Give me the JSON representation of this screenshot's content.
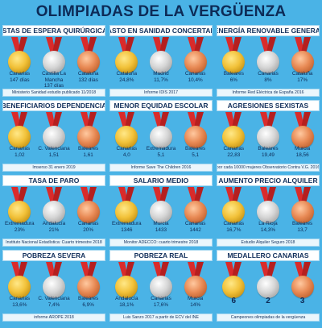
{
  "title": "OLIMPIADAS DE LA VERGÜENZA",
  "colors": {
    "background": "#4ab3e6",
    "ribbon": "#d92b2b",
    "gold": "#f2c23a",
    "silver": "#c9c9c9",
    "bronze": "#e07a45",
    "text": "#0d2b57"
  },
  "panels": [
    {
      "title": "LISTAS DE ESPERA QUIRÚRGICAS",
      "source": "Ministerio Sanidad estudio publicado 11/2018",
      "medals": [
        {
          "type": "gold",
          "line1": "Canarias",
          "line2": "147 días"
        },
        {
          "type": "silver",
          "line1": "Castilla La Mancha",
          "line2": "137 días"
        },
        {
          "type": "bronze",
          "line1": "Cataluña",
          "line2": "132 días"
        }
      ]
    },
    {
      "title": "GASTO EN SANIDAD CONCERTADA",
      "source": "Informe IDIS 2017",
      "medals": [
        {
          "type": "gold",
          "line1": "Cataluña",
          "line2": "24,8%"
        },
        {
          "type": "silver",
          "line1": "Madrid",
          "line2": "11,7%"
        },
        {
          "type": "bronze",
          "line1": "Canarias",
          "line2": "10,4%"
        }
      ]
    },
    {
      "title": "% ENERGÍA RENOVABLE GENERADA",
      "source": "Informe Red Eléctrica de España 2016",
      "medals": [
        {
          "type": "gold",
          "line1": "Baleares",
          "line2": "6%"
        },
        {
          "type": "silver",
          "line1": "Canarias",
          "line2": "8%"
        },
        {
          "type": "bronze",
          "line1": "Cataluña",
          "line2": "17%"
        }
      ]
    },
    {
      "title": "BENEFICIARIOS DEPENDENCIA",
      "source": "Imserso 31 enero 2019",
      "medals": [
        {
          "type": "gold",
          "line1": "Canarias",
          "line2": "1,02"
        },
        {
          "type": "silver",
          "line1": "C. Valenciana",
          "line2": "1,51"
        },
        {
          "type": "bronze",
          "line1": "Baleares",
          "line2": "1,61"
        }
      ]
    },
    {
      "title": "MENOR EQUIDAD ESCOLAR",
      "source": "Informe Save The Children 2016",
      "medals": [
        {
          "type": "gold",
          "line1": "Canarias",
          "line2": "4,0"
        },
        {
          "type": "silver",
          "line1": "Extremadura",
          "line2": "5,1"
        },
        {
          "type": "bronze",
          "line1": "Baleares",
          "line2": "5,1"
        }
      ]
    },
    {
      "title": "AGRESIONES SEXISTAS",
      "source": "por cada 10000 mujeres Observatorio Contra V.G. 2016",
      "medals": [
        {
          "type": "gold",
          "line1": "Canarias",
          "line2": "22,83"
        },
        {
          "type": "silver",
          "line1": "Baleares",
          "line2": "19,49"
        },
        {
          "type": "bronze",
          "line1": "Murcia",
          "line2": "18,56"
        }
      ]
    },
    {
      "title": "TASA DE PARO",
      "source": "Instituto Nacional Estadística: Cuarto trimestre 2018",
      "medals": [
        {
          "type": "gold",
          "line1": "Extremadura",
          "line2": "23%"
        },
        {
          "type": "silver",
          "line1": "Andalucía",
          "line2": "21%"
        },
        {
          "type": "bronze",
          "line1": "Canarias",
          "line2": "20%"
        }
      ]
    },
    {
      "title": "SALARIO MEDIO",
      "source": "Monitor ADECCO: cuarto trimestre 2018",
      "medals": [
        {
          "type": "gold",
          "line1": "Extremadura",
          "line2": "1346"
        },
        {
          "type": "silver",
          "line1": "Murcia",
          "line2": "1433"
        },
        {
          "type": "bronze",
          "line1": "Canarias",
          "line2": "1442"
        }
      ]
    },
    {
      "title": "AUMENTO PRECIO ALQUILER",
      "source": "Estudio Alquiler Seguro 2018",
      "medals": [
        {
          "type": "gold",
          "line1": "Canarias",
          "line2": "16,7%"
        },
        {
          "type": "silver",
          "line1": "La Rioja",
          "line2": "14,3%"
        },
        {
          "type": "bronze",
          "line1": "Baleares",
          "line2": "13,7"
        }
      ]
    },
    {
      "title": "POBREZA SEVERA",
      "source": "informe AROPE 2018",
      "medals": [
        {
          "type": "gold",
          "line1": "Canarias",
          "line2": "13,6%"
        },
        {
          "type": "silver",
          "line1": "C. Valenciana",
          "line2": "7,4%"
        },
        {
          "type": "bronze",
          "line1": "Baleares",
          "line2": "6,9%"
        }
      ]
    },
    {
      "title": "POBREZA REAL",
      "source": "Luis Sanzo 2017 a partir de ECV del INE",
      "medals": [
        {
          "type": "gold",
          "line1": "Andalucía",
          "line2": "18,1%"
        },
        {
          "type": "silver",
          "line1": "Canarias",
          "line2": "17,6%"
        },
        {
          "type": "bronze",
          "line1": "Murcia",
          "line2": "14%"
        }
      ]
    },
    {
      "title": "MEDALLERO CANARIAS",
      "source": "Campeones olimpiadas de la vergüenza",
      "medals": [
        {
          "type": "gold",
          "line1": "6",
          "line2": ""
        },
        {
          "type": "silver",
          "line1": "2",
          "line2": ""
        },
        {
          "type": "bronze",
          "line1": "3",
          "line2": ""
        }
      ]
    }
  ]
}
